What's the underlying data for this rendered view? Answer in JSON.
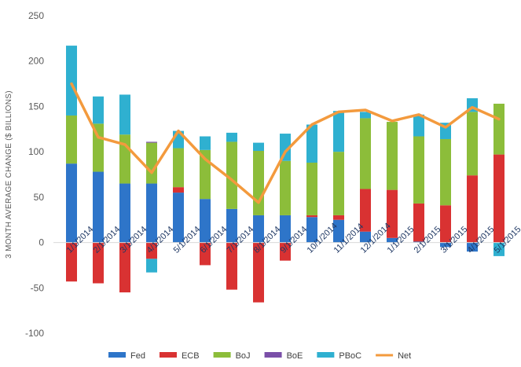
{
  "chart_data": {
    "type": "bar",
    "stacked": true,
    "categories": [
      "1/1/2014",
      "2/1/2014",
      "3/1/2014",
      "4/1/2014",
      "5/1/2014",
      "6/1/2014",
      "7/1/2014",
      "8/1/2014",
      "9/1/2014",
      "10/1/2014",
      "11/1/2014",
      "12/1/2014",
      "1/1/2015",
      "2/1/2015",
      "3/1/2015",
      "4/1/2015",
      "5/1/2015"
    ],
    "ylabel": "3 MONTH AVERAGE CHANGE ($ BILLIONS)",
    "ylim": [
      -100,
      250
    ],
    "yticks": [
      -100,
      -50,
      0,
      50,
      100,
      150,
      200,
      250
    ],
    "grid": false,
    "legend_position": "bottom",
    "series": [
      {
        "name": "Fed",
        "color": "#2e75c9",
        "values": [
          87,
          78,
          65,
          65,
          55,
          48,
          37,
          30,
          30,
          28,
          25,
          12,
          5,
          1,
          -5,
          -10,
          0
        ]
      },
      {
        "name": "ECB",
        "color": "#d93232",
        "values": [
          -43,
          -45,
          -55,
          -18,
          6,
          -25,
          -52,
          -66,
          -20,
          2,
          5,
          47,
          53,
          42,
          41,
          74,
          97
        ]
      },
      {
        "name": "BoJ",
        "color": "#8cbd3a",
        "values": [
          53,
          53,
          54,
          45,
          43,
          54,
          74,
          71,
          60,
          58,
          70,
          78,
          75,
          74,
          73,
          70,
          56
        ]
      },
      {
        "name": "BoE",
        "color": "#7a4fa8",
        "values": [
          0,
          0,
          0,
          1,
          0,
          0,
          0,
          0,
          0,
          0,
          0,
          0,
          0,
          0,
          0,
          0,
          0
        ]
      },
      {
        "name": "PBoC",
        "color": "#2fb0d0",
        "values": [
          77,
          30,
          44,
          -15,
          19,
          15,
          10,
          9,
          30,
          42,
          45,
          7,
          0,
          24,
          18,
          15,
          -15
        ]
      },
      {
        "name": "Net",
        "color": "#f39a3d",
        "type": "line",
        "values": [
          175,
          116,
          108,
          77,
          123,
          92,
          69,
          44,
          100,
          130,
          144,
          146,
          134,
          141,
          127,
          149,
          136
        ]
      }
    ]
  }
}
